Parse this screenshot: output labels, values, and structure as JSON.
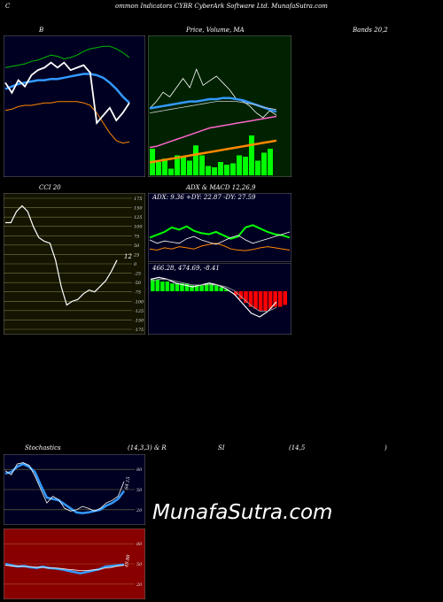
{
  "header": {
    "left": "C",
    "title": "ommon  Indicators CYBR CyberArk Software   Ltd. MunafaSutra.com"
  },
  "labels": {
    "bb_left": "B",
    "bb_right": "Bands 20,2",
    "price_vol_ma": "Price,  Volume,  MA",
    "cci": "CCI 20",
    "adx_macd": "ADX  & MACD 12,26,9",
    "adx_values": "ADX: 9.36  +DY: 22.87 -DY: 27.59",
    "macd_values": "466.28,  474.69,  -8.41",
    "stoch_left": "Stochastics",
    "stoch_mid": "(14,3,3) & R",
    "rsi_mid": "SI",
    "rsi_params": "(14,5",
    "rsi_close": ")",
    "stoch_value": "64.15",
    "rsi_value": "49.88",
    "cci_value": "12",
    "watermark": "MunafaSutra.com"
  },
  "colors": {
    "bb_bg": "#000022",
    "price_bg": "#002200",
    "cci_bg": "#141400",
    "stoch_bg": "#000022",
    "rsi_bg": "#880000",
    "volume": "#00ff00",
    "ma_blue": "#3399ff",
    "ma_orange": "#ff8800",
    "ma_pink": "#ff66cc",
    "band_green": "#00bb00"
  },
  "chart_data": [
    {
      "type": "line",
      "name": "Bollinger Bands",
      "title": "B",
      "ylim": [
        0,
        100
      ],
      "series": [
        {
          "name": "upper",
          "values": [
            80,
            81,
            82,
            83,
            85,
            86,
            88,
            90,
            89,
            87,
            88,
            90,
            93,
            95,
            96,
            97,
            97,
            95,
            92,
            88
          ]
        },
        {
          "name": "middle",
          "values": [
            63,
            65,
            67,
            68,
            69,
            70,
            70,
            71,
            71,
            72,
            73,
            74,
            75,
            75,
            74,
            72,
            68,
            63,
            57,
            52
          ]
        },
        {
          "name": "lower",
          "values": [
            46,
            47,
            49,
            50,
            50,
            51,
            52,
            52,
            53,
            53,
            53,
            53,
            52,
            50,
            44,
            36,
            28,
            22,
            20,
            21
          ]
        },
        {
          "name": "price",
          "values": [
            68,
            60,
            70,
            65,
            74,
            78,
            80,
            84,
            80,
            84,
            78,
            80,
            82,
            76,
            36,
            42,
            48,
            38,
            44,
            52
          ]
        }
      ]
    },
    {
      "type": "line",
      "name": "Price Volume MA",
      "title": "Price,  Volume,  MA",
      "ylim": [
        0,
        100
      ],
      "series": [
        {
          "name": "price",
          "values": [
            52,
            58,
            66,
            62,
            70,
            78,
            70,
            86,
            72,
            76,
            80,
            74,
            68,
            60,
            58,
            54,
            48,
            44,
            50,
            46
          ]
        },
        {
          "name": "ma_blue",
          "values": [
            52,
            53,
            54,
            55,
            56,
            57,
            58,
            58,
            59,
            60,
            60,
            61,
            61,
            60,
            59,
            57,
            55,
            53,
            51,
            49
          ]
        },
        {
          "name": "ma_white",
          "values": [
            48,
            49,
            50,
            51,
            52,
            53,
            54,
            55,
            56,
            57,
            58,
            58,
            58,
            58,
            57,
            56,
            55,
            53,
            52,
            51
          ]
        },
        {
          "name": "ma_pink",
          "values": [
            18,
            19,
            21,
            23,
            25,
            27,
            29,
            31,
            33,
            35,
            36,
            37,
            38,
            39,
            40,
            41,
            42,
            43,
            44,
            45
          ]
        },
        {
          "name": "ma_orange",
          "values": [
            5,
            6,
            7,
            8,
            9,
            10,
            11,
            12,
            13,
            14,
            15,
            16,
            17,
            18,
            19,
            20,
            21,
            22,
            23,
            24
          ]
        }
      ],
      "volume": [
        40,
        20,
        25,
        10,
        30,
        28,
        22,
        45,
        30,
        14,
        12,
        20,
        16,
        18,
        30,
        28,
        60,
        22,
        34,
        40
      ]
    },
    {
      "type": "line",
      "name": "CCI",
      "title": "CCI 20",
      "ylim": [
        -175,
        175
      ],
      "ticks": [
        175,
        150,
        125,
        100,
        75,
        50,
        25,
        0,
        -25,
        -50,
        -75,
        -100,
        -125,
        -150,
        -175
      ],
      "values": [
        110,
        110,
        140,
        155,
        140,
        100,
        70,
        60,
        55,
        10,
        -60,
        -110,
        -100,
        -95,
        -80,
        -70,
        -75,
        -60,
        -45,
        -20,
        10
      ]
    },
    {
      "type": "line",
      "name": "ADX",
      "title": "ADX  & MACD 12,26,9",
      "ylim": [
        0,
        100
      ],
      "series": [
        {
          "name": "adx",
          "values": [
            20,
            18,
            22,
            20,
            24,
            22,
            20,
            25,
            28,
            30,
            26,
            20,
            18,
            17,
            19,
            22,
            24,
            22,
            20,
            18
          ]
        },
        {
          "name": "plus_di",
          "values": [
            40,
            45,
            50,
            58,
            54,
            60,
            52,
            48,
            46,
            50,
            44,
            38,
            42,
            58,
            62,
            56,
            50,
            46,
            44,
            40
          ]
        },
        {
          "name": "minus_di",
          "values": [
            36,
            30,
            34,
            32,
            30,
            38,
            42,
            36,
            32,
            28,
            34,
            40,
            44,
            36,
            30,
            34,
            38,
            42,
            46,
            50
          ]
        }
      ]
    },
    {
      "type": "bar",
      "name": "MACD",
      "ylim": [
        -20,
        12
      ],
      "histogram": [
        6,
        6,
        5,
        5,
        4,
        4,
        4,
        4,
        3,
        3,
        3,
        4,
        4,
        3,
        2,
        1,
        0,
        -2,
        -4,
        -6,
        -8,
        -9,
        -10,
        -10,
        -9,
        -8,
        -8,
        -7
      ],
      "series": [
        {
          "name": "macd",
          "values": [
            8,
            9,
            8,
            6,
            5,
            4,
            5,
            6,
            5,
            3,
            0,
            -5,
            -10,
            -12,
            -9,
            -4
          ]
        },
        {
          "name": "signal",
          "values": [
            7,
            8,
            8,
            7,
            6,
            5,
            5,
            5,
            5,
            4,
            2,
            -2,
            -6,
            -9,
            -9,
            -7
          ]
        }
      ]
    },
    {
      "type": "line",
      "name": "Stochastics",
      "title": "Stochastics (14,3,3)",
      "ylim": [
        0,
        100
      ],
      "ticks": [
        80,
        50,
        20
      ],
      "series": [
        {
          "name": "k",
          "values": [
            78,
            72,
            88,
            90,
            86,
            70,
            50,
            30,
            40,
            35,
            22,
            18,
            20,
            25,
            22,
            18,
            22,
            30,
            34,
            40,
            62
          ]
        },
        {
          "name": "d",
          "values": [
            74,
            76,
            84,
            88,
            84,
            76,
            56,
            38,
            36,
            34,
            28,
            22,
            16,
            15,
            16,
            18,
            20,
            26,
            30,
            36,
            48
          ]
        }
      ],
      "value_label": "64.15"
    },
    {
      "type": "line",
      "name": "RSI",
      "title": "RSI (14,5",
      "ylim": [
        0,
        100
      ],
      "ticks": [
        80,
        50,
        20
      ],
      "series": [
        {
          "name": "rsi",
          "values": [
            50,
            48,
            46,
            47,
            45,
            44,
            46,
            44,
            43,
            42,
            40,
            38,
            36,
            38,
            40,
            42,
            46,
            47,
            48,
            49
          ]
        },
        {
          "name": "rsi_ma",
          "values": [
            48,
            47,
            47,
            46,
            46,
            45,
            45,
            44,
            44,
            43,
            42,
            41,
            40,
            40,
            41,
            42,
            44,
            45,
            47,
            48
          ]
        }
      ],
      "value_label": "49.88"
    }
  ]
}
